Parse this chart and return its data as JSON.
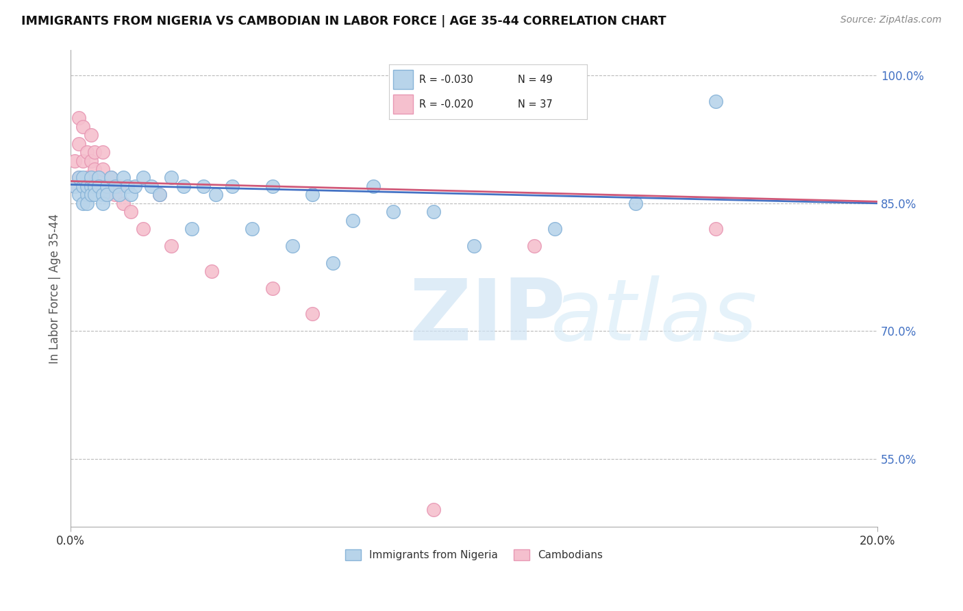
{
  "title": "IMMIGRANTS FROM NIGERIA VS CAMBODIAN IN LABOR FORCE | AGE 35-44 CORRELATION CHART",
  "source": "Source: ZipAtlas.com",
  "ylabel": "In Labor Force | Age 35-44",
  "xlim": [
    0.0,
    0.2
  ],
  "ylim": [
    0.47,
    1.03
  ],
  "blue_color": "#b8d4ea",
  "pink_color": "#f5c0ce",
  "blue_edge": "#88b4d8",
  "pink_edge": "#e898b4",
  "trend_blue": "#4472c4",
  "trend_pink": "#d05878",
  "legend_r_blue": "R = -0.030",
  "legend_n_blue": "N = 49",
  "legend_r_pink": "R = -0.020",
  "legend_n_pink": "N = 37",
  "legend_label_blue": "Immigrants from Nigeria",
  "legend_label_pink": "Cambodians",
  "watermark_zip": "ZIP",
  "watermark_atlas": "atlas",
  "ytick_positions": [
    0.55,
    0.7,
    0.85,
    1.0
  ],
  "ytick_labels": [
    "55.0%",
    "70.0%",
    "85.0%",
    "100.0%"
  ],
  "nigeria_x": [
    0.001,
    0.002,
    0.002,
    0.003,
    0.003,
    0.003,
    0.004,
    0.004,
    0.004,
    0.005,
    0.005,
    0.005,
    0.006,
    0.006,
    0.007,
    0.007,
    0.008,
    0.008,
    0.009,
    0.009,
    0.01,
    0.011,
    0.012,
    0.013,
    0.014,
    0.015,
    0.016,
    0.018,
    0.02,
    0.022,
    0.025,
    0.028,
    0.03,
    0.033,
    0.036,
    0.04,
    0.045,
    0.05,
    0.055,
    0.06,
    0.065,
    0.07,
    0.075,
    0.08,
    0.09,
    0.1,
    0.12,
    0.14,
    0.16
  ],
  "nigeria_y": [
    0.87,
    0.88,
    0.86,
    0.87,
    0.88,
    0.85,
    0.86,
    0.87,
    0.85,
    0.87,
    0.86,
    0.88,
    0.87,
    0.86,
    0.88,
    0.87,
    0.86,
    0.85,
    0.87,
    0.86,
    0.88,
    0.87,
    0.86,
    0.88,
    0.87,
    0.86,
    0.87,
    0.88,
    0.87,
    0.86,
    0.88,
    0.87,
    0.82,
    0.87,
    0.86,
    0.87,
    0.82,
    0.87,
    0.8,
    0.86,
    0.78,
    0.83,
    0.87,
    0.84,
    0.84,
    0.8,
    0.82,
    0.85,
    0.97
  ],
  "cambodian_x": [
    0.001,
    0.001,
    0.002,
    0.002,
    0.002,
    0.003,
    0.003,
    0.003,
    0.004,
    0.004,
    0.004,
    0.005,
    0.005,
    0.005,
    0.006,
    0.006,
    0.006,
    0.007,
    0.007,
    0.008,
    0.008,
    0.009,
    0.009,
    0.01,
    0.011,
    0.012,
    0.013,
    0.015,
    0.018,
    0.022,
    0.025,
    0.035,
    0.05,
    0.06,
    0.09,
    0.115,
    0.16
  ],
  "cambodian_y": [
    0.87,
    0.9,
    0.88,
    0.92,
    0.95,
    0.87,
    0.9,
    0.94,
    0.88,
    0.91,
    0.86,
    0.88,
    0.9,
    0.93,
    0.87,
    0.89,
    0.91,
    0.87,
    0.88,
    0.89,
    0.91,
    0.87,
    0.86,
    0.88,
    0.86,
    0.87,
    0.85,
    0.84,
    0.82,
    0.86,
    0.8,
    0.77,
    0.75,
    0.72,
    0.49,
    0.8,
    0.82
  ]
}
